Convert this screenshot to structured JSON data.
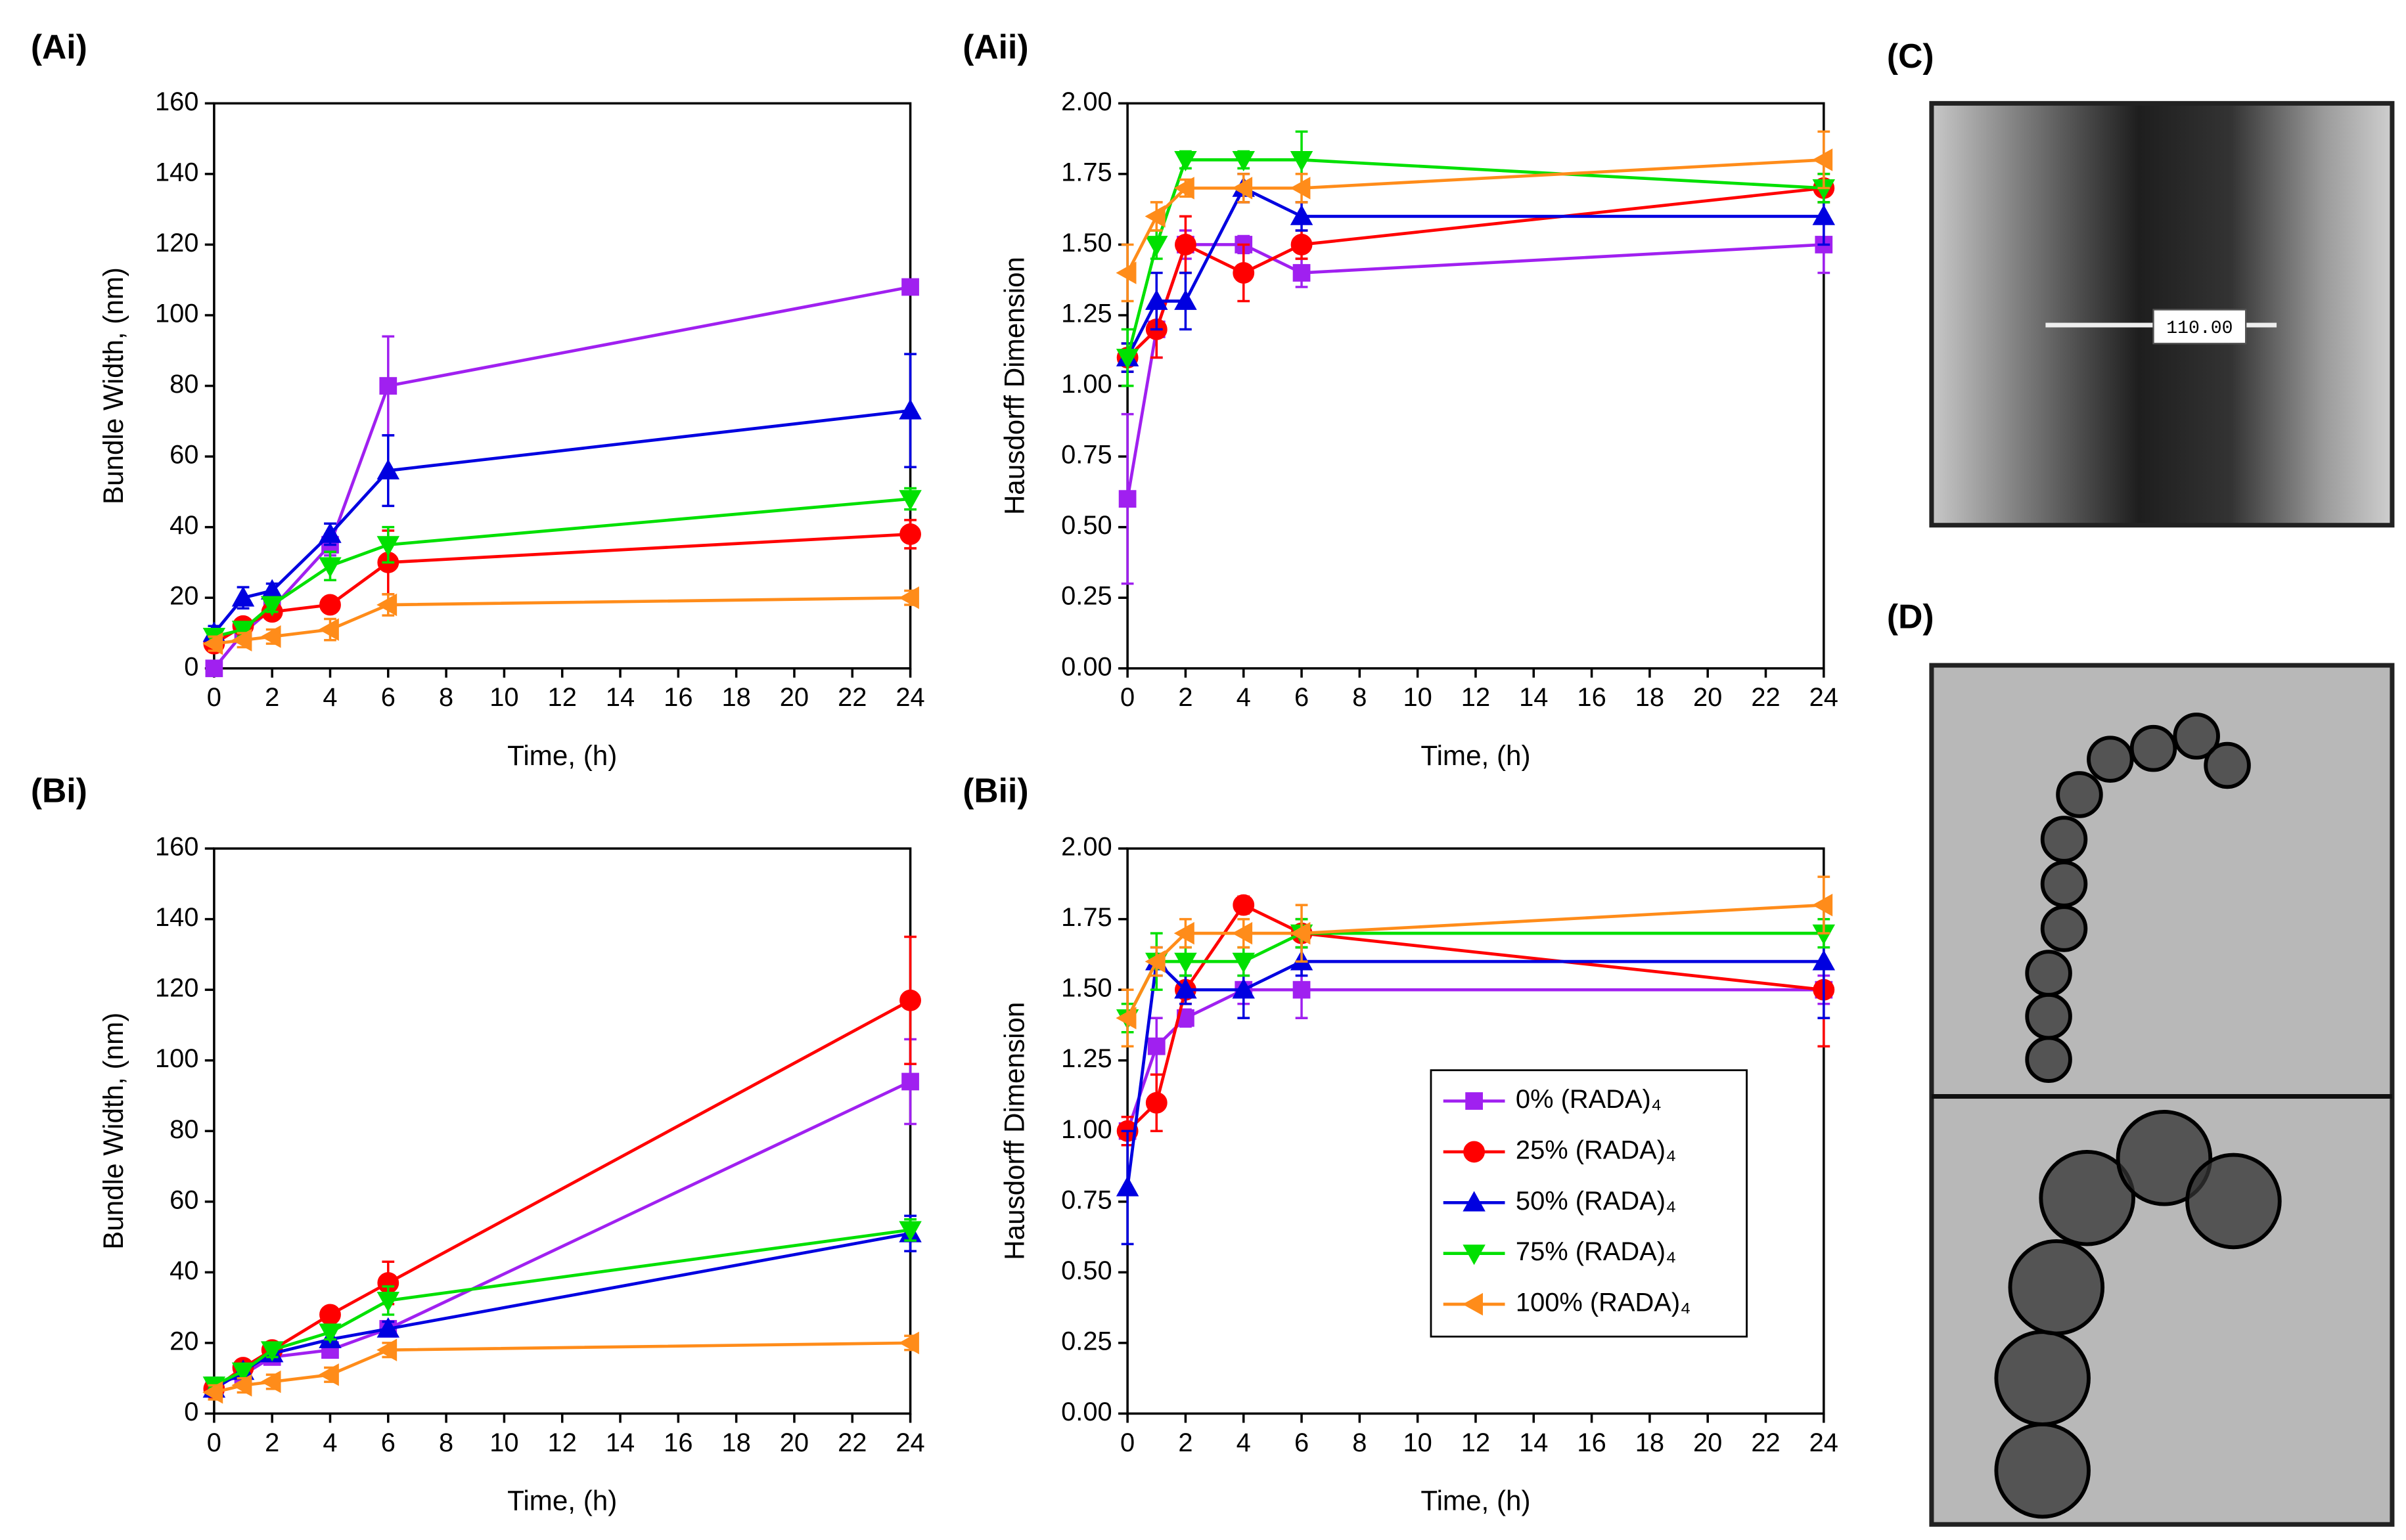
{
  "chart_data": [
    {
      "type": "line",
      "panel_label": "(Ai)",
      "xlabel": "Time, (h)",
      "ylabel": "Bundle Width, (nm)",
      "x": [
        0,
        1,
        2,
        4,
        6,
        24
      ],
      "xlim": [
        0,
        24
      ],
      "xticks": [
        0,
        2,
        4,
        6,
        8,
        10,
        12,
        14,
        16,
        18,
        20,
        22,
        24
      ],
      "ylim": [
        0,
        160
      ],
      "yticks": [
        0,
        20,
        40,
        60,
        80,
        100,
        120,
        140,
        160
      ],
      "series": [
        {
          "name": "0% (RADA)₄",
          "color": "#a020f0",
          "marker": "square",
          "values": [
            0,
            10,
            17,
            35,
            80,
            108
          ],
          "errors": [
            0.5,
            2,
            2,
            3,
            14,
            2
          ]
        },
        {
          "name": "25% (RADA)₄",
          "color": "#ff0000",
          "marker": "circle",
          "values": [
            7,
            12,
            16,
            18,
            30,
            38
          ],
          "errors": [
            2,
            2,
            2,
            2,
            9,
            4
          ]
        },
        {
          "name": "50% (RADA)₄",
          "color": "#0000e0",
          "marker": "triangle-up",
          "values": [
            10,
            20,
            22,
            38,
            56,
            73
          ],
          "errors": [
            2,
            3,
            2,
            3,
            10,
            16
          ]
        },
        {
          "name": "75% (RADA)₄",
          "color": "#00e000",
          "marker": "triangle-down",
          "values": [
            9,
            11,
            18,
            29,
            35,
            48
          ],
          "errors": [
            2,
            2,
            2,
            4,
            5,
            3
          ]
        },
        {
          "name": "100% (RADA)₄",
          "color": "#ff8c1a",
          "marker": "triangle-left",
          "values": [
            7,
            8,
            9,
            11,
            18,
            20
          ],
          "errors": [
            2,
            2,
            2,
            3,
            3,
            2
          ]
        }
      ]
    },
    {
      "type": "line",
      "panel_label": "(Aii)",
      "xlabel": "Time, (h)",
      "ylabel": "Hausdorff Dimension",
      "x": [
        0,
        1,
        2,
        4,
        6,
        24
      ],
      "xlim": [
        0,
        24
      ],
      "xticks": [
        0,
        2,
        4,
        6,
        8,
        10,
        12,
        14,
        16,
        18,
        20,
        22,
        24
      ],
      "ylim": [
        0,
        2
      ],
      "yticks": [
        {
          "value": 0,
          "label": "0.00"
        },
        {
          "value": 0.25,
          "label": "0.25"
        },
        {
          "value": 0.5,
          "label": "0.50"
        },
        {
          "value": 0.75,
          "label": "0.75"
        },
        {
          "value": 1,
          "label": "1.00"
        },
        {
          "value": 1.25,
          "label": "1.25"
        },
        {
          "value": 1.5,
          "label": "1.50"
        },
        {
          "value": 1.75,
          "label": "1.75"
        },
        {
          "value": 2,
          "label": "2.00"
        }
      ],
      "series": [
        {
          "name": "0% (RADA)₄",
          "color": "#a020f0",
          "marker": "square",
          "values": [
            0.6,
            1.2,
            1.5,
            1.5,
            1.4,
            1.5
          ],
          "errors": [
            0.3,
            0.1,
            0.05,
            0.03,
            0.05,
            0.1
          ]
        },
        {
          "name": "25% (RADA)₄",
          "color": "#ff0000",
          "marker": "circle",
          "values": [
            1.1,
            1.2,
            1.5,
            1.4,
            1.5,
            1.7
          ],
          "errors": [
            0.05,
            0.1,
            0.1,
            0.1,
            0.05,
            0.05
          ]
        },
        {
          "name": "50% (RADA)₄",
          "color": "#0000e0",
          "marker": "triangle-up",
          "values": [
            1.1,
            1.3,
            1.3,
            1.7,
            1.6,
            1.6
          ],
          "errors": [
            0.05,
            0.1,
            0.1,
            0.05,
            0.05,
            0.1
          ]
        },
        {
          "name": "75% (RADA)₄",
          "color": "#00e000",
          "marker": "triangle-down",
          "values": [
            1.1,
            1.5,
            1.8,
            1.8,
            1.8,
            1.7
          ],
          "errors": [
            0.1,
            0.05,
            0.03,
            0.03,
            0.1,
            0.05
          ]
        },
        {
          "name": "100% (RADA)₄",
          "color": "#ff8c1a",
          "marker": "triangle-left",
          "values": [
            1.4,
            1.6,
            1.7,
            1.7,
            1.7,
            1.8
          ],
          "errors": [
            0.1,
            0.05,
            0.03,
            0.05,
            0.05,
            0.1
          ]
        }
      ]
    },
    {
      "type": "line",
      "panel_label": "(Bi)",
      "xlabel": "Time, (h)",
      "ylabel": "Bundle Width, (nm)",
      "x": [
        0,
        1,
        2,
        4,
        6,
        24
      ],
      "xlim": [
        0,
        24
      ],
      "xticks": [
        0,
        2,
        4,
        6,
        8,
        10,
        12,
        14,
        16,
        18,
        20,
        22,
        24
      ],
      "ylim": [
        0,
        160
      ],
      "yticks": [
        0,
        20,
        40,
        60,
        80,
        100,
        120,
        140,
        160
      ],
      "series": [
        {
          "name": "0% (RADA)₄",
          "color": "#a020f0",
          "marker": "square",
          "values": [
            8,
            11,
            16,
            18,
            24,
            94
          ],
          "errors": [
            1,
            2,
            2,
            2,
            2,
            12
          ]
        },
        {
          "name": "25% (RADA)₄",
          "color": "#ff0000",
          "marker": "circle",
          "values": [
            7,
            13,
            18,
            28,
            37,
            117
          ],
          "errors": [
            1,
            2,
            2,
            2,
            6,
            18
          ]
        },
        {
          "name": "50% (RADA)₄",
          "color": "#0000e0",
          "marker": "triangle-up",
          "values": [
            7,
            12,
            17,
            21,
            24,
            51
          ],
          "errors": [
            1,
            2,
            2,
            2,
            2,
            5
          ]
        },
        {
          "name": "75% (RADA)₄",
          "color": "#00e000",
          "marker": "triangle-down",
          "values": [
            8,
            12,
            18,
            23,
            32,
            52
          ],
          "errors": [
            1,
            2,
            2,
            2,
            4,
            3
          ]
        },
        {
          "name": "100% (RADA)₄",
          "color": "#ff8c1a",
          "marker": "triangle-left",
          "values": [
            6,
            8,
            9,
            11,
            18,
            20
          ],
          "errors": [
            2,
            2,
            2,
            2,
            2,
            2
          ]
        }
      ]
    },
    {
      "type": "line",
      "panel_label": "(Bii)",
      "xlabel": "Time, (h)",
      "ylabel": "Hausdorff Dimension",
      "legend": "lower right",
      "x": [
        0,
        1,
        2,
        4,
        6,
        24
      ],
      "xlim": [
        0,
        24
      ],
      "xticks": [
        0,
        2,
        4,
        6,
        8,
        10,
        12,
        14,
        16,
        18,
        20,
        22,
        24
      ],
      "ylim": [
        0,
        2
      ],
      "yticks": [
        {
          "value": 0,
          "label": "0.00"
        },
        {
          "value": 0.25,
          "label": "0.25"
        },
        {
          "value": 0.5,
          "label": "0.50"
        },
        {
          "value": 0.75,
          "label": "0.75"
        },
        {
          "value": 1,
          "label": "1.00"
        },
        {
          "value": 1.25,
          "label": "1.25"
        },
        {
          "value": 1.5,
          "label": "1.50"
        },
        {
          "value": 1.75,
          "label": "1.75"
        },
        {
          "value": 2,
          "label": "2.00"
        }
      ],
      "series": [
        {
          "name": "0% (RADA)₄",
          "color": "#a020f0",
          "marker": "square",
          "values": [
            1.0,
            1.3,
            1.4,
            1.5,
            1.5,
            1.5
          ],
          "errors": [
            0.05,
            0.1,
            0.03,
            0.05,
            0.1,
            0.05
          ]
        },
        {
          "name": "25% (RADA)₄",
          "color": "#ff0000",
          "marker": "circle",
          "values": [
            1.0,
            1.1,
            1.5,
            1.8,
            1.7,
            1.5
          ],
          "errors": [
            0.05,
            0.1,
            0.05,
            0.03,
            0.05,
            0.2
          ]
        },
        {
          "name": "50% (RADA)₄",
          "color": "#0000e0",
          "marker": "triangle-up",
          "values": [
            0.8,
            1.6,
            1.5,
            1.5,
            1.6,
            1.6
          ],
          "errors": [
            0.2,
            0.05,
            0.05,
            0.1,
            0.05,
            0.2
          ]
        },
        {
          "name": "75% (RADA)₄",
          "color": "#00e000",
          "marker": "triangle-down",
          "values": [
            1.4,
            1.6,
            1.6,
            1.6,
            1.7,
            1.7
          ],
          "errors": [
            0.05,
            0.1,
            0.05,
            0.05,
            0.05,
            0.05
          ]
        },
        {
          "name": "100% (RADA)₄",
          "color": "#ff8c1a",
          "marker": "triangle-left",
          "values": [
            1.4,
            1.6,
            1.7,
            1.7,
            1.7,
            1.8
          ],
          "errors": [
            0.1,
            0.05,
            0.05,
            0.05,
            0.1,
            0.1
          ]
        }
      ]
    }
  ],
  "images": [
    {
      "panel_label": "(C)",
      "annotation": "110.00"
    },
    {
      "panel_label": "(D)"
    }
  ]
}
